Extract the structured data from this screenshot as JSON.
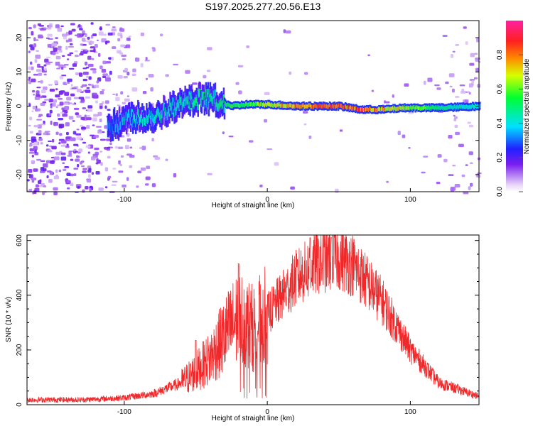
{
  "title": "S197.2025.277.20.56.E13",
  "colors": {
    "signal": "#f0282a",
    "frame": "#000000",
    "background": "#ffffff"
  },
  "chart_data": [
    {
      "type": "heatmap",
      "name": "spectrogram",
      "title": "S197.2025.277.20.56.E13",
      "xlabel": "Height of straight line (km)",
      "ylabel": "Frequency (Hz)",
      "xlim": [
        -168,
        148
      ],
      "ylim": [
        -25,
        25
      ],
      "xticks": [
        -100,
        0,
        100
      ],
      "yticks": [
        -20,
        -10,
        0,
        10,
        20
      ],
      "colorbar": {
        "label": "Normalized spectral amplitude",
        "range": [
          0,
          1
        ],
        "ticks": [
          "0.0",
          "0.2",
          "0.4",
          "0.6",
          "0.8"
        ]
      },
      "ridge": [
        {
          "x": -110,
          "y": -6,
          "amp": 0.35
        },
        {
          "x": -95,
          "y": -3,
          "amp": 0.45
        },
        {
          "x": -80,
          "y": -3,
          "amp": 0.45
        },
        {
          "x": -65,
          "y": 0,
          "amp": 0.45
        },
        {
          "x": -45,
          "y": 2.5,
          "amp": 0.5
        },
        {
          "x": -35,
          "y": 1.5,
          "amp": 0.5
        },
        {
          "x": -25,
          "y": 0,
          "amp": 0.55
        },
        {
          "x": -15,
          "y": 0.5,
          "amp": 0.55
        },
        {
          "x": 0,
          "y": 0.5,
          "amp": 0.65
        },
        {
          "x": 20,
          "y": 0,
          "amp": 0.8
        },
        {
          "x": 50,
          "y": 0,
          "amp": 0.85
        },
        {
          "x": 65,
          "y": -1,
          "amp": 0.82
        },
        {
          "x": 80,
          "y": -1,
          "amp": 0.75
        },
        {
          "x": 95,
          "y": -0.5,
          "amp": 0.65
        },
        {
          "x": 105,
          "y": -0.5,
          "amp": 0.6
        },
        {
          "x": 120,
          "y": -0.5,
          "amp": 0.5
        },
        {
          "x": 148,
          "y": 0,
          "amp": 0.4
        }
      ]
    },
    {
      "type": "line",
      "name": "snr",
      "xlabel": "Height of straight line (km)",
      "ylabel": "SNR (10 * v/v)",
      "xlim": [
        -168,
        148
      ],
      "ylim": [
        0,
        620
      ],
      "xticks": [
        -100,
        0,
        100
      ],
      "yticks": [
        0,
        200,
        400,
        600
      ],
      "envelope": [
        {
          "x": -168,
          "y": 18
        },
        {
          "x": -130,
          "y": 18
        },
        {
          "x": -100,
          "y": 25
        },
        {
          "x": -80,
          "y": 40
        },
        {
          "x": -60,
          "y": 80
        },
        {
          "x": -50,
          "y": 120
        },
        {
          "x": -40,
          "y": 170
        },
        {
          "x": -30,
          "y": 250
        },
        {
          "x": -20,
          "y": 320
        },
        {
          "x": -10,
          "y": 280
        },
        {
          "x": 0,
          "y": 330
        },
        {
          "x": 20,
          "y": 460
        },
        {
          "x": 35,
          "y": 520
        },
        {
          "x": 50,
          "y": 540
        },
        {
          "x": 60,
          "y": 510
        },
        {
          "x": 80,
          "y": 380
        },
        {
          "x": 100,
          "y": 200
        },
        {
          "x": 120,
          "y": 80
        },
        {
          "x": 148,
          "y": 30
        }
      ],
      "peaks": [
        {
          "x": -50,
          "y": 235
        },
        {
          "x": -20,
          "y": 515
        },
        {
          "x": 30,
          "y": 610
        },
        {
          "x": 45,
          "y": 610
        }
      ]
    }
  ]
}
